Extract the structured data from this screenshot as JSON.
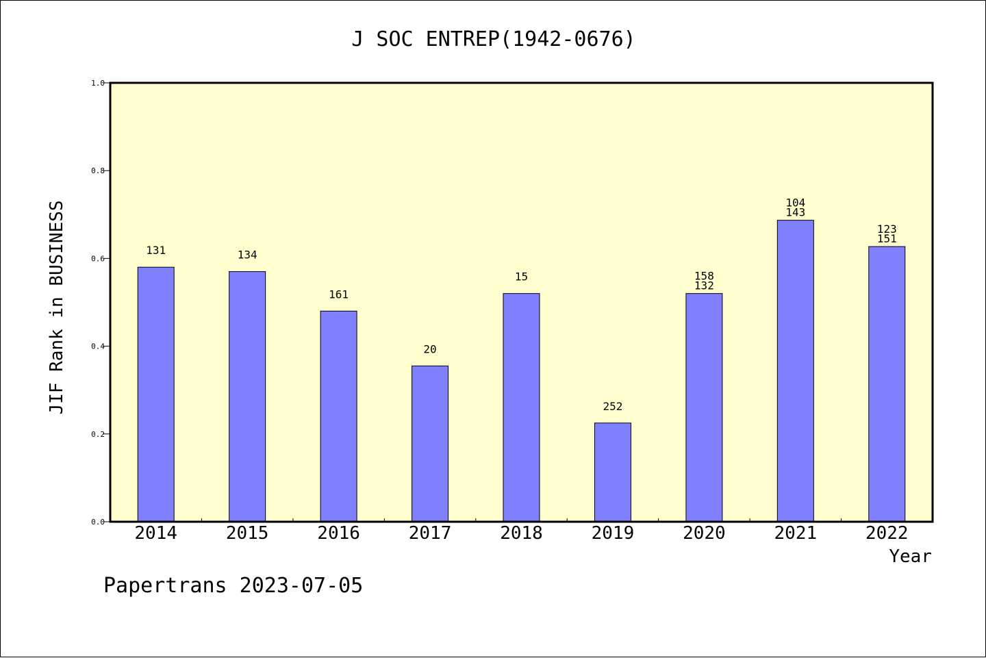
{
  "chart_data": {
    "type": "bar",
    "title": "J SOC ENTREP(1942-0676)",
    "xlabel": "Year",
    "ylabel": "JIF Rank in BUSINESS",
    "categories": [
      "2014",
      "2015",
      "2016",
      "2017",
      "2018",
      "2019",
      "2020",
      "2021",
      "2022"
    ],
    "values": [
      0.58,
      0.57,
      0.48,
      0.355,
      0.52,
      0.225,
      0.52,
      0.687,
      0.627
    ],
    "bar_labels": [
      [
        "131"
      ],
      [
        "134"
      ],
      [
        "161"
      ],
      [
        "20"
      ],
      [
        "15"
      ],
      [
        "252"
      ],
      [
        "158",
        "132"
      ],
      [
        "104",
        "143"
      ],
      [
        "123",
        "151"
      ]
    ],
    "ylim": [
      0,
      1.0
    ],
    "yticks": [
      "0.0",
      "0.2",
      "0.4",
      "0.6",
      "0.8",
      "1.0"
    ],
    "grid": false,
    "colors": {
      "bar": "#8080ff",
      "plot_background": "#ffffd0"
    }
  },
  "footer": "Papertrans 2023-07-05"
}
